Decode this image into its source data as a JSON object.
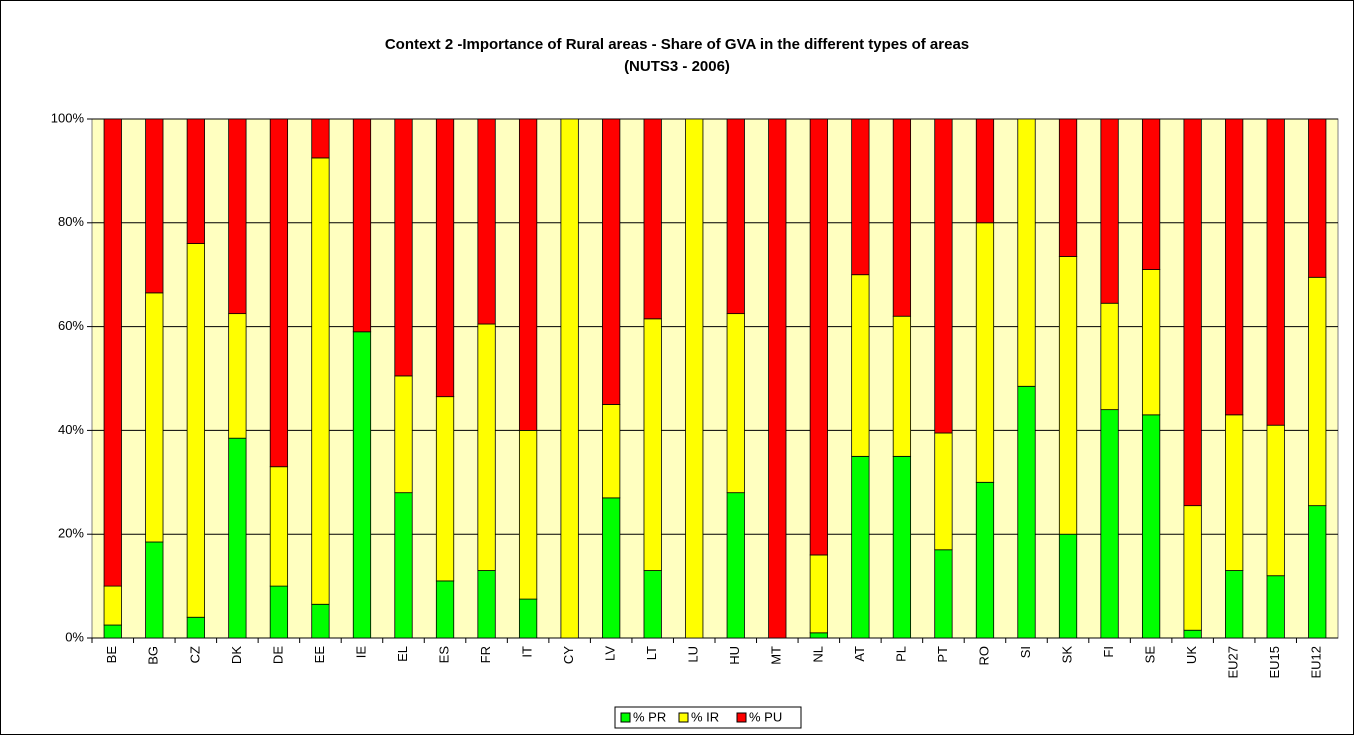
{
  "chart_data": {
    "type": "stacked_bar",
    "title": "Context 2 -Importance of Rural areas - Share of GVA in the different types of areas",
    "subtitle": "(NUTS3 - 2006)",
    "categories": [
      "BE",
      "BG",
      "CZ",
      "DK",
      "DE",
      "EE",
      "IE",
      "EL",
      "ES",
      "FR",
      "IT",
      "CY",
      "LV",
      "LT",
      "LU",
      "HU",
      "MT",
      "NL",
      "AT",
      "PL",
      "PT",
      "RO",
      "SI",
      "SK",
      "FI",
      "SE",
      "UK",
      "EU27",
      "EU15",
      "EU12"
    ],
    "series": [
      {
        "name": "% PR",
        "color": "#00ff00",
        "values": [
          2.5,
          18.5,
          4,
          38.5,
          10,
          6.5,
          59,
          28,
          11,
          13,
          7.5,
          0,
          27,
          13,
          0,
          28,
          0,
          1,
          35,
          35,
          17,
          30,
          48.5,
          20,
          44,
          43,
          1.5,
          13,
          12,
          25.5
        ]
      },
      {
        "name": "% IR",
        "color": "#ffff00",
        "values": [
          7.5,
          48,
          72,
          24,
          23,
          86,
          0,
          22.5,
          35.5,
          47.5,
          32.5,
          100,
          18,
          48.5,
          100,
          34.5,
          0,
          15,
          35,
          27,
          22.5,
          50,
          51.5,
          53.5,
          20.5,
          28,
          24,
          30,
          29,
          44
        ]
      },
      {
        "name": "% PU",
        "color": "#ff0000",
        "values": [
          90,
          33.5,
          24,
          37.5,
          67,
          7.5,
          41,
          49.5,
          53.5,
          39.5,
          60,
          0,
          55,
          38.5,
          0,
          37.5,
          100,
          84,
          30,
          38,
          60.5,
          20,
          0,
          26.5,
          35.5,
          29,
          74.5,
          57,
          59,
          30.5
        ]
      }
    ],
    "ylim": [
      0,
      100
    ],
    "yticks": [
      {
        "value": 0,
        "label": "0%"
      },
      {
        "value": 20,
        "label": "20%"
      },
      {
        "value": 40,
        "label": "40%"
      },
      {
        "value": 60,
        "label": "60%"
      },
      {
        "value": 80,
        "label": "80%"
      },
      {
        "value": 100,
        "label": "100%"
      }
    ],
    "grid": true,
    "legend": "bottom"
  }
}
